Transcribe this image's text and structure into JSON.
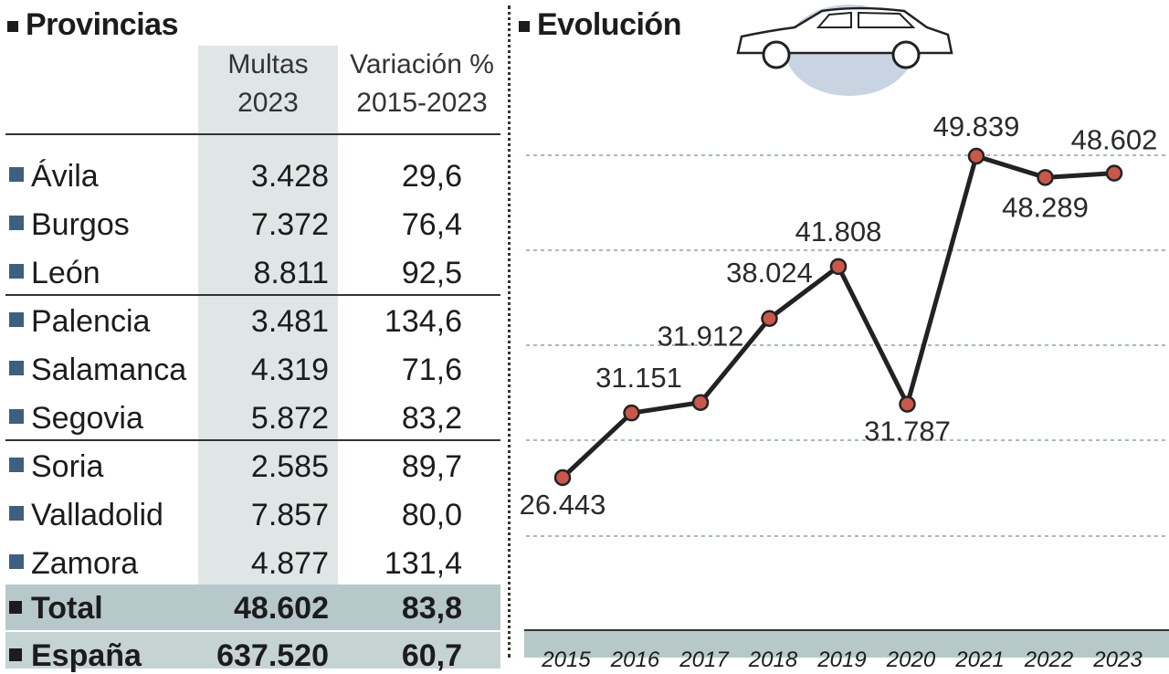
{
  "left_panel": {
    "title": "Provincias",
    "header_multas": "Multas\n2023",
    "header_variacion": "Variación %\n2015-2023",
    "rows": [
      {
        "name": "Ávila",
        "multas": "3.428",
        "variacion": "29,6"
      },
      {
        "name": "Burgos",
        "multas": "7.372",
        "variacion": "76,4"
      },
      {
        "name": "León",
        "multas": "8.811",
        "variacion": "92,5"
      },
      {
        "name": "Palencia",
        "multas": "3.481",
        "variacion": "134,6"
      },
      {
        "name": "Salamanca",
        "multas": "4.319",
        "variacion": "71,6"
      },
      {
        "name": "Segovia",
        "multas": "5.872",
        "variacion": "83,2"
      },
      {
        "name": "Soria",
        "multas": "2.585",
        "variacion": "89,7"
      },
      {
        "name": "Valladolid",
        "multas": "7.857",
        "variacion": "80,0"
      },
      {
        "name": "Zamora",
        "multas": "4.877",
        "variacion": "131,4"
      }
    ],
    "total": {
      "name": "Total",
      "multas": "48.602",
      "variacion": "83,8"
    },
    "espana": {
      "name": "España",
      "multas": "637.520",
      "variacion": "60,7"
    }
  },
  "right_panel": {
    "title": "Evolución",
    "car_icon": "car-icon"
  },
  "colors": {
    "marker_fill": "#c8584a",
    "line": "#222222",
    "table_shade": "#dfe7e6",
    "total_shade": "#b7c8ca",
    "bullet": "#3f5f7f",
    "axis_band": "#b7c8ca"
  },
  "chart_data": {
    "type": "line",
    "title": "Evolución",
    "x": [
      "2015",
      "2016",
      "2017",
      "2018",
      "2019",
      "2020",
      "2021",
      "2022",
      "2023"
    ],
    "series": [
      {
        "values": [
          26443,
          31151,
          31912,
          38024,
          41808,
          31787,
          49839,
          48289,
          48602
        ]
      }
    ],
    "labels": [
      "26.443",
      "31.151",
      "31.912",
      "38.024",
      "41.808",
      "31.787",
      "49.839",
      "48.289",
      "48.602"
    ],
    "grid": true
  }
}
